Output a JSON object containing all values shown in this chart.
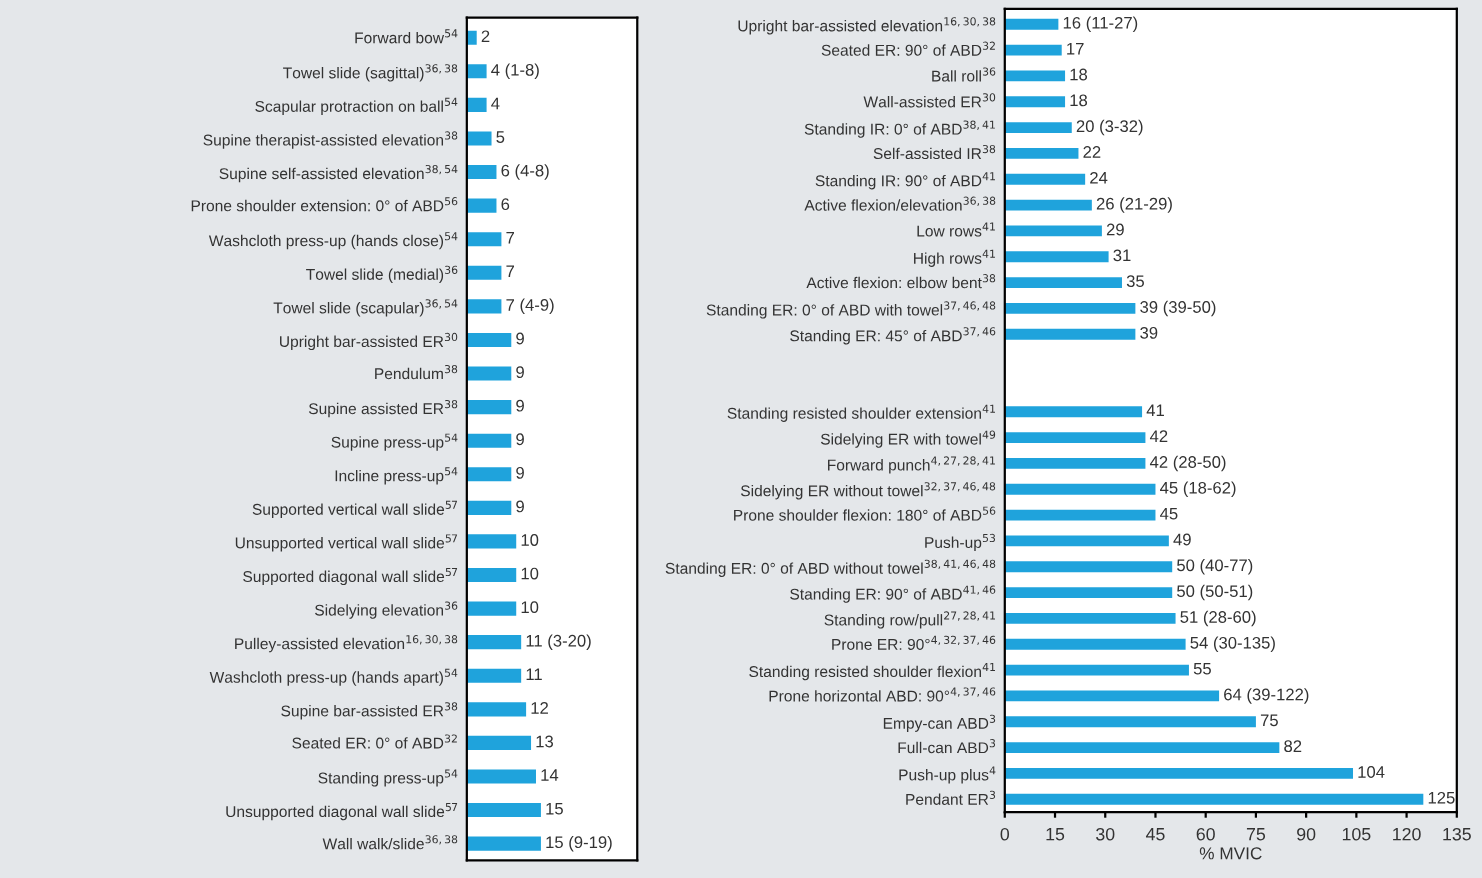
{
  "chart_data": [
    {
      "type": "bar",
      "orientation": "horizontal",
      "tick_labels": "y",
      "grid": false,
      "categories": [
        "Forward bow$^{54}$",
        "Towel slide (sagittal)$^{36,38}$",
        "Scapular protraction on ball$^{54}$",
        "Supine therapist-assisted elevation$^{38}$",
        "Supine self-assisted elevation$^{38,54}$",
        "Prone shoulder extension: 0° of ABD$^{56}$",
        "Washcloth press-up (hands close)$^{54}$",
        "Towel slide (medial)$^{36}$",
        "Towel slide (scapular)$^{36,54}$",
        "Upright bar-assisted ER$^{30}$",
        "Pendulum$^{38}$",
        "Supine assisted ER$^{38}$",
        "Supine press-up$^{54}$",
        "Incline press-up$^{54}$",
        "Supported vertical wall slide$^{57}$",
        "Unsupported vertical wall slide$^{57}$",
        "Supported diagonal wall slide$^{57}$",
        "Sidelying elevation$^{36}$",
        "Pulley-assisted elevation$^{16,30,38}$",
        "Washcloth press-up (hands apart)$^{54}$",
        "Supine bar-assisted ER$^{38}$",
        "Seated ER: 0° of ABD$^{32}$",
        "Standing press-up$^{54}$",
        "Unsupported diagonal wall slide$^{57}$",
        "Wall walk/slide$^{36,38}$"
      ],
      "values": [
        2,
        4,
        4,
        5,
        6,
        6,
        7,
        7,
        7,
        9,
        9,
        9,
        9,
        9,
        9,
        10,
        10,
        10,
        11,
        11,
        12,
        13,
        14,
        15,
        15
      ],
      "value_labels": [
        "2",
        "4 (1-8)",
        "4",
        "5",
        "6 (4-8)",
        "6",
        "7",
        "7",
        "7 (4-9)",
        "9",
        "9",
        "9",
        "9",
        "9",
        "9",
        "10",
        "10",
        "10",
        "11 (3-20)",
        "11",
        "12",
        "13",
        "14",
        "15",
        "15 (9-19)"
      ],
      "color": "#1fa3dc"
    },
    {
      "type": "bar",
      "orientation": "horizontal",
      "grid": false,
      "xlabel": "% MVIC",
      "xlim": [
        0,
        135
      ],
      "xticks": [
        0,
        15,
        30,
        45,
        60,
        75,
        90,
        105,
        120,
        135
      ],
      "categories": [
        "Upright bar-assisted elevation$^{16,30,38}$",
        "Seated ER: 90° of ABD$^{32}$",
        "Ball roll$^{36}$",
        "Wall-assisted ER$^{30}$",
        "Standing IR: 0° of ABD$^{38,41}$",
        "Self-assisted IR$^{38}$",
        "Standing IR: 90° of ABD$^{41}$",
        "Active flexion/elevation$^{36,38}$",
        "Low rows$^{41}$",
        "High rows$^{41}$",
        "Active flexion: elbow bent$^{38}$",
        "Standing ER: 0° of ABD with towel$^{37,46,48}$",
        "Standing ER: 45° of ABD$^{37,46}$",
        null,
        null,
        "Standing resisted shoulder extension$^{41}$",
        "Sidelying ER with towel$^{49}$",
        "Forward punch$^{4,27,28,41}$",
        "Sidelying ER without towel$^{32,37,46,48}$",
        "Prone shoulder flexion: 180° of ABD$^{56}$",
        "Push-up$^{53}$",
        "Standing ER: 0° of ABD without towel$^{38,41,46,48}$",
        "Standing ER: 90° of ABD$^{41,46}$",
        "Standing row/pull$^{27,28,41}$",
        "Prone ER: 90°$^{4,32,37,46}$",
        "Standing resisted shoulder flexion$^{41}$",
        "Prone horizontal ABD: 90°$^{4,37,46}$",
        "Empy-can ABD$^{3}$",
        "Full-can ABD$^{3}$",
        "Push-up plus$^{4}$",
        "Pendant ER$^{3}$"
      ],
      "values": [
        16,
        17,
        18,
        18,
        20,
        22,
        24,
        26,
        29,
        31,
        35,
        39,
        39,
        null,
        null,
        41,
        42,
        42,
        45,
        45,
        49,
        50,
        50,
        51,
        54,
        55,
        64,
        75,
        82,
        104,
        125
      ],
      "value_labels": [
        "16 (11-27)",
        "17",
        "18",
        "18",
        "20 (3-32)",
        "22",
        "24",
        "26 (21-29)",
        "29",
        "31",
        "35",
        "39 (39-50)",
        "39",
        null,
        null,
        "41",
        "42",
        "42 (28-50)",
        "45 (18-62)",
        "45",
        "49",
        "50 (40-77)",
        "50 (50-51)",
        "51 (28-60)",
        "54 (30-135)",
        "55",
        "64 (39-122)",
        "75",
        "82",
        "104",
        "125"
      ],
      "color": "#1fa3dc"
    }
  ]
}
